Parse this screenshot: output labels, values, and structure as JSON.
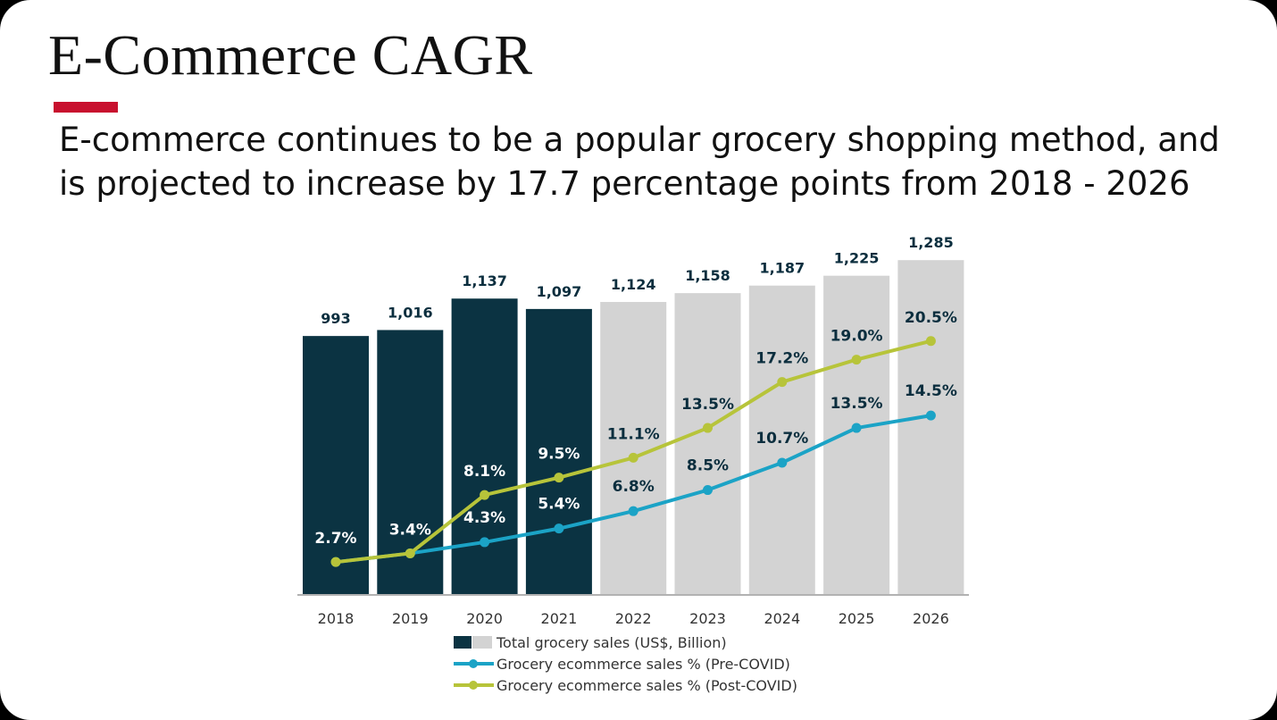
{
  "slide": {
    "title": "E-Commerce CAGR",
    "subtitle_line1": "E-commerce continues to be a popular grocery shopping method, and",
    "subtitle_line2": "is projected to increase by 17.7 percentage points from 2018 - 2026"
  },
  "colors": {
    "accent": "#c8102e",
    "bar_actual": "#0b3342",
    "bar_projected": "#d3d3d3",
    "pre_covid_line": "#1ba3c6",
    "post_covid_line": "#b7c43a",
    "label_dark": "#0b2e3e"
  },
  "chart_data": {
    "type": "bar",
    "categories": [
      "2018",
      "2019",
      "2020",
      "2021",
      "2022",
      "2023",
      "2024",
      "2025",
      "2026"
    ],
    "title": "",
    "xlabel": "",
    "ylabel": "",
    "grid": false,
    "legend_position": "bottom",
    "series": [
      {
        "name": "Total grocery sales (US$, Billion)",
        "kind": "bar",
        "values": [
          993,
          1016,
          1137,
          1097,
          1124,
          1158,
          1187,
          1225,
          1285
        ],
        "value_labels": [
          "993",
          "1,016",
          "1,137",
          "1,097",
          "1,124",
          "1,158",
          "1,187",
          "1,225",
          "1,285"
        ],
        "actual_count": 4
      },
      {
        "name": "Grocery ecommerce sales % (Pre-COVID)",
        "kind": "line",
        "values": [
          2.7,
          3.4,
          4.3,
          5.4,
          6.8,
          8.5,
          10.7,
          13.5,
          14.5
        ],
        "value_labels": [
          "",
          "",
          "4.3%",
          "5.4%",
          "6.8%",
          "8.5%",
          "10.7%",
          "13.5%",
          "14.5%"
        ]
      },
      {
        "name": "Grocery ecommerce sales % (Post-COVID)",
        "kind": "line",
        "values": [
          2.7,
          3.4,
          8.1,
          9.5,
          11.1,
          13.5,
          17.2,
          19.0,
          20.5
        ],
        "value_labels": [
          "2.7%",
          "3.4%",
          "8.1%",
          "9.5%",
          "11.1%",
          "13.5%",
          "17.2%",
          "19.0%",
          "20.5%"
        ]
      }
    ]
  }
}
